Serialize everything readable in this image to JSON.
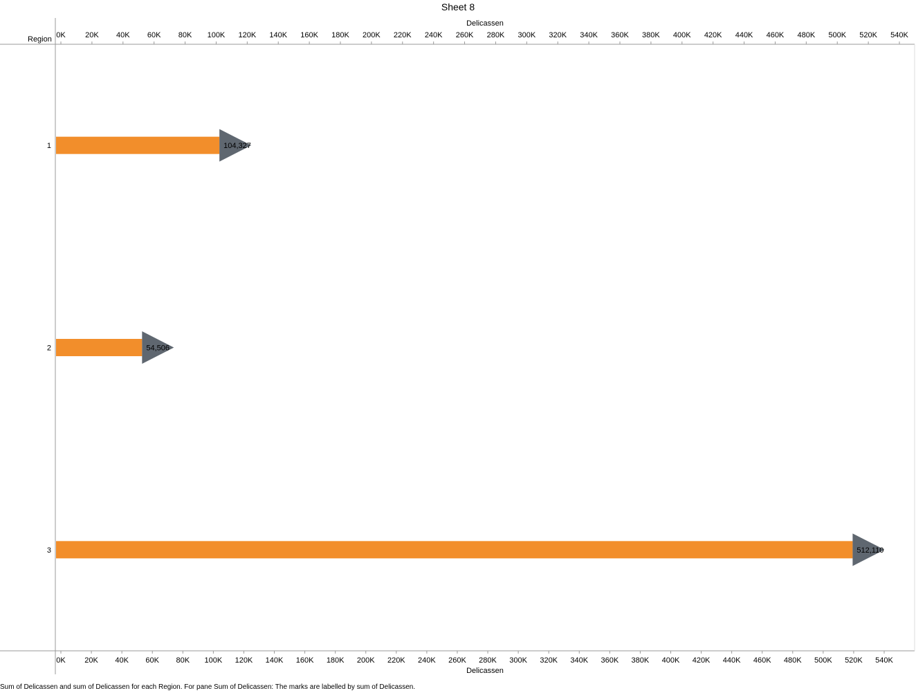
{
  "title": "Sheet 8",
  "row_header": "Region",
  "caption": "Sum of Delicassen and sum of Delicassen for each Region.  For pane Sum of Delicassen:  The marks are labelled by sum of Delicassen.",
  "colors": {
    "bar": "#f28e2b",
    "arrow": "#5f6770",
    "axis": "#999999"
  },
  "chart_data": {
    "type": "bar",
    "orientation": "horizontal",
    "title": "Sheet 8",
    "xlabel": "Delicassen",
    "ylabel": "Region",
    "xlim": [
      0,
      540000
    ],
    "categories": [
      "1",
      "2",
      "3"
    ],
    "series": [
      {
        "values": [
          104327,
          54506,
          512110
        ]
      }
    ],
    "data_labels": [
      "104,327",
      "54,506",
      "512,110"
    ],
    "x_ticks": [
      0,
      20000,
      40000,
      60000,
      80000,
      100000,
      120000,
      140000,
      160000,
      180000,
      200000,
      220000,
      240000,
      260000,
      280000,
      300000,
      320000,
      340000,
      360000,
      380000,
      400000,
      420000,
      440000,
      460000,
      480000,
      500000,
      520000,
      540000
    ],
    "x_tick_labels_top": [
      "0K",
      "20K",
      "40K",
      "60K",
      "80K",
      "100K",
      "120K",
      "140K",
      "160K",
      "180K",
      "200K",
      "220K",
      "240K",
      "260K",
      "280K",
      "300K",
      "320K",
      "340K",
      "360K",
      "380K",
      "400K",
      "420K",
      "440K",
      "460K",
      "480K",
      "500K",
      "520K",
      "540K"
    ],
    "x_tick_labels_bottom": [
      "0K",
      "20K",
      "40K",
      "60K",
      "80K",
      "100K",
      "120K",
      "140K",
      "160K",
      "180K",
      "200K",
      "220K",
      "240K",
      "260K",
      "280K",
      "300K",
      "320K",
      "340K",
      "360K",
      "380K",
      "400K",
      "420K",
      "440K",
      "460K",
      "480K",
      "500K",
      "520K",
      "540K"
    ],
    "grid": false,
    "legend": "none"
  }
}
